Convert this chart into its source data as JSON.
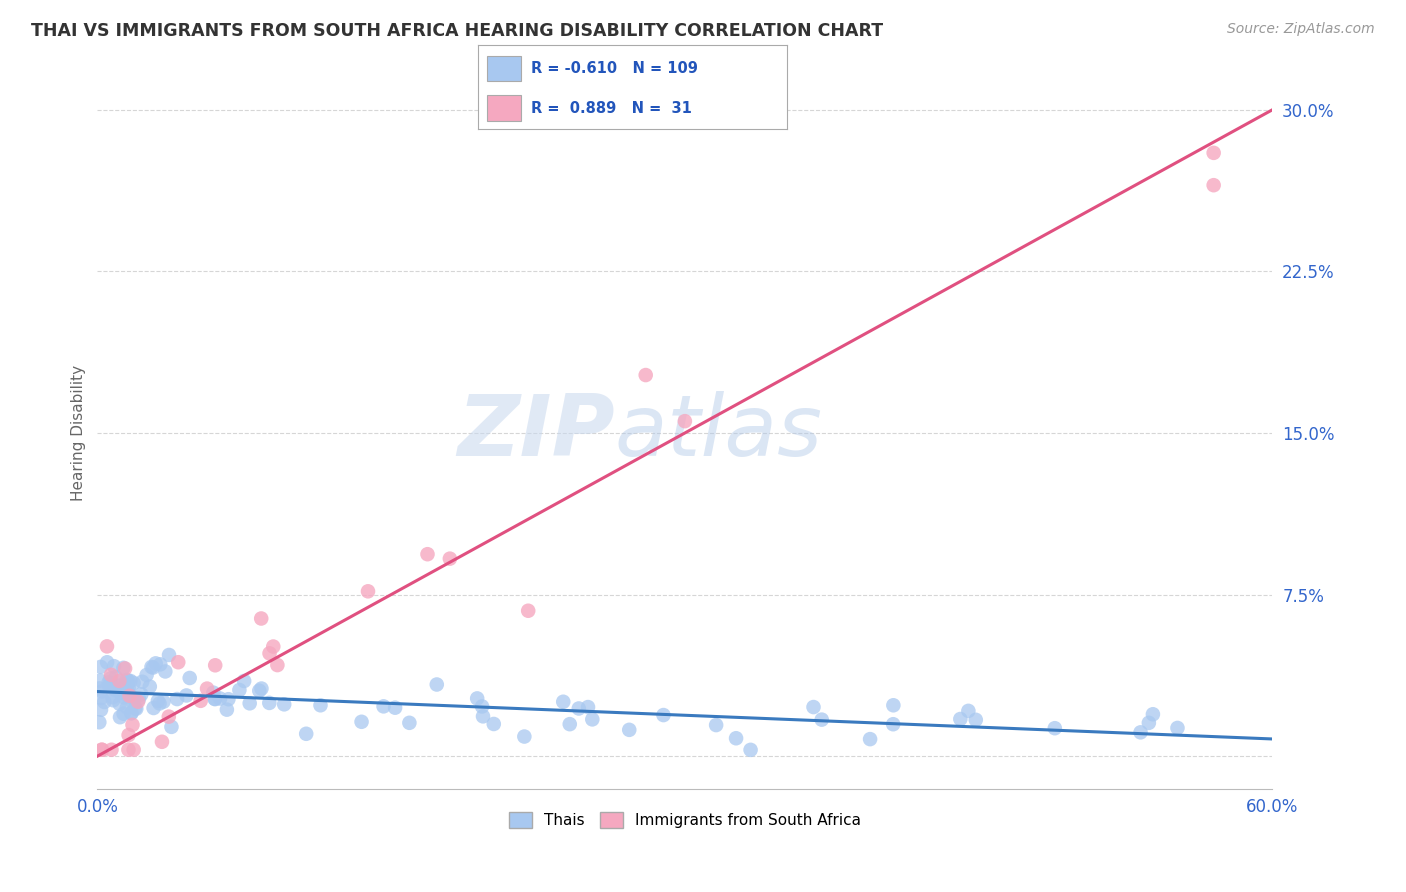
{
  "title": "THAI VS IMMIGRANTS FROM SOUTH AFRICA HEARING DISABILITY CORRELATION CHART",
  "source": "Source: ZipAtlas.com",
  "ylabel": "Hearing Disability",
  "ytick_vals": [
    0.0,
    0.075,
    0.15,
    0.225,
    0.3
  ],
  "ytick_labels": [
    "",
    "7.5%",
    "15.0%",
    "22.5%",
    "30.0%"
  ],
  "xmin": 0.0,
  "xmax": 0.6,
  "ymin": -0.015,
  "ymax": 0.315,
  "thai_R": -0.61,
  "thai_N": 109,
  "sa_R": 0.889,
  "sa_N": 31,
  "thai_color": "#a8c8f0",
  "sa_color": "#f5a8c0",
  "thai_line_color": "#3a7abf",
  "sa_line_color": "#e05080",
  "legend_label_thai": "Thais",
  "legend_label_sa": "Immigrants from South Africa",
  "watermark_zip": "ZIP",
  "watermark_atlas": "atlas",
  "sa_line_x0": 0.0,
  "sa_line_y0": 0.0,
  "sa_line_x1": 0.6,
  "sa_line_y1": 0.3,
  "thai_line_x0": 0.0,
  "thai_line_y0": 0.03,
  "thai_line_x1": 0.6,
  "thai_line_y1": 0.008
}
